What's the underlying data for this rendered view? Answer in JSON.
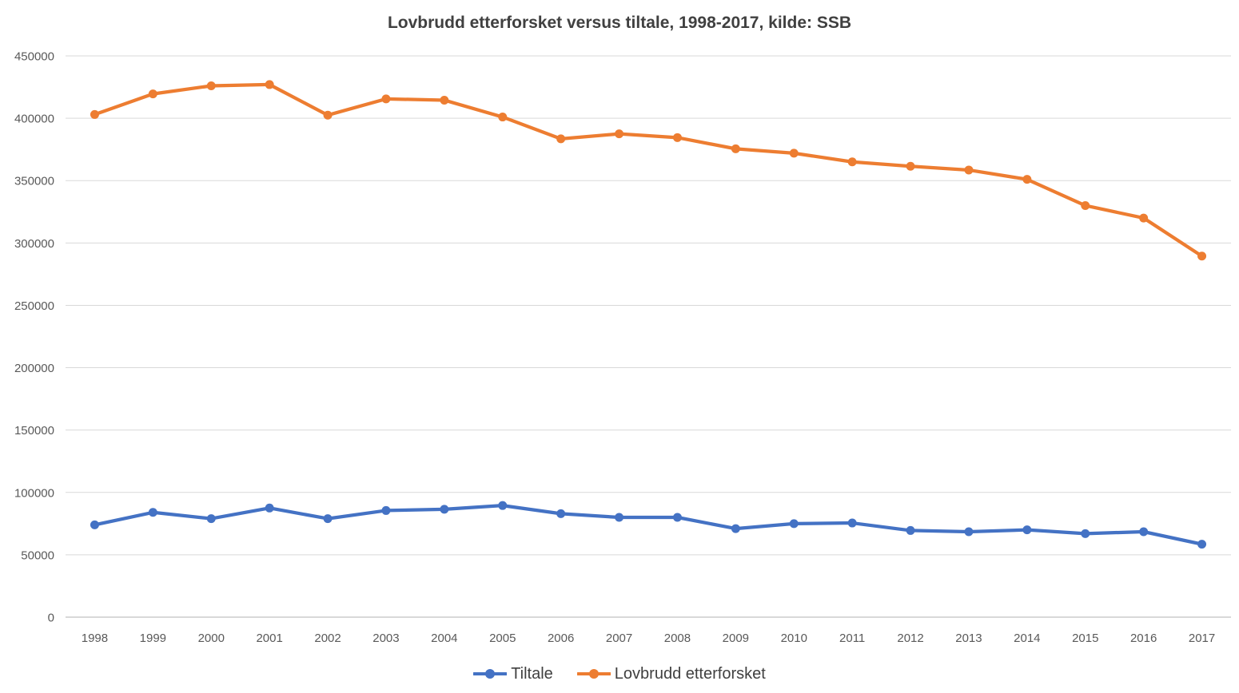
{
  "chart_data": {
    "type": "line",
    "title": "Lovbrudd etterforsket versus tiltale, 1998-2017, kilde: SSB",
    "categories": [
      "1998",
      "1999",
      "2000",
      "2001",
      "2002",
      "2003",
      "2004",
      "2005",
      "2006",
      "2007",
      "2008",
      "2009",
      "2010",
      "2011",
      "2012",
      "2013",
      "2014",
      "2015",
      "2016",
      "2017"
    ],
    "series": [
      {
        "name": "Tiltale",
        "color": "#4472C4",
        "values": [
          74000,
          84000,
          79000,
          87500,
          79000,
          85500,
          86500,
          89500,
          83000,
          80000,
          80000,
          71000,
          75000,
          75500,
          69500,
          68500,
          70000,
          67000,
          68500,
          58500
        ]
      },
      {
        "name": "Lovbrudd etterforsket",
        "color": "#ED7D31",
        "values": [
          403000,
          419500,
          426000,
          427000,
          402500,
          415500,
          414500,
          401000,
          383500,
          387500,
          384500,
          375500,
          372000,
          365000,
          361500,
          358500,
          351000,
          330000,
          320000,
          289500
        ]
      }
    ],
    "xlabel": "",
    "ylabel": "",
    "y_axis": {
      "min": 0,
      "max": 450000,
      "step": 50000,
      "tick_labels": [
        "0",
        "50000",
        "100000",
        "150000",
        "200000",
        "250000",
        "300000",
        "350000",
        "400000",
        "450000"
      ]
    },
    "legend_position": "bottom",
    "grid": true,
    "marker": "circle"
  },
  "colors": {
    "background": "#FFFFFF",
    "gridline": "#D9D9D9",
    "axis_line": "#C0C0C0",
    "tick_label": "#595959",
    "title": "#404040",
    "legend_text": "#404040"
  }
}
